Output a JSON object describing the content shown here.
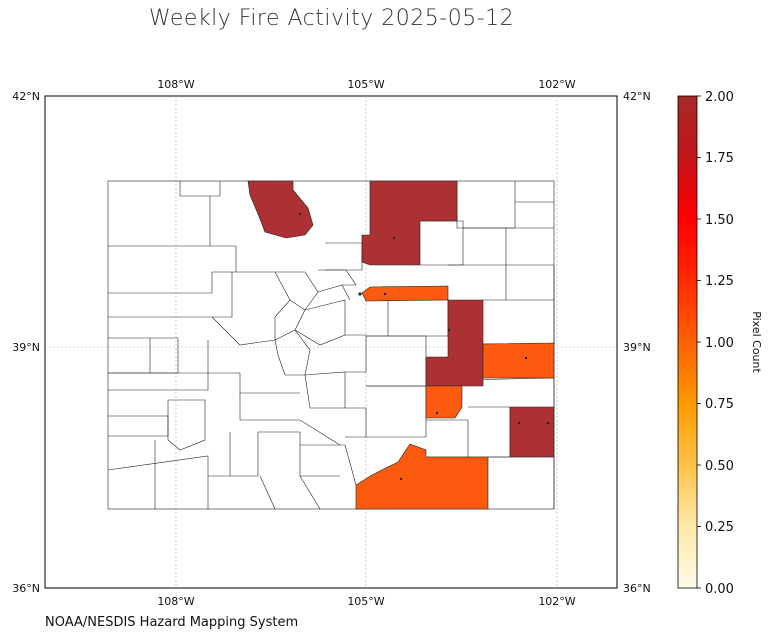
{
  "title": "Weekly Fire Activity 2025-05-12",
  "source": "NOAA/NESDIS Hazard Mapping System",
  "map": {
    "lat_range": [
      36,
      42
    ],
    "lon_range": [
      -110,
      -101
    ],
    "lon_ticks": [
      "108°W",
      "105°W",
      "102°W"
    ],
    "lat_ticks_left": [
      "42°N",
      "39°N",
      "36°N"
    ],
    "lat_ticks_right": [
      "42°N",
      "39°N",
      "36°N"
    ],
    "gridlines": true,
    "region": "Colorado counties"
  },
  "colorbar": {
    "label": "Pixel Count",
    "range": [
      0,
      2
    ],
    "ticks": [
      "0.00",
      "0.25",
      "0.50",
      "0.75",
      "1.00",
      "1.25",
      "1.50",
      "1.75",
      "2.00"
    ],
    "colors": [
      "#fffbea",
      "#ffe8a8",
      "#ffc24a",
      "#ff9a00",
      "#ff6000",
      "#ff2a00",
      "#ff0000",
      "#c4141a",
      "#a52a2a"
    ]
  },
  "fire_counties": [
    {
      "id": "larimer-west",
      "value": 2,
      "color": "#ad3034"
    },
    {
      "id": "weld",
      "value": 2,
      "color": "#ad3034"
    },
    {
      "id": "adams-strip",
      "value": 1,
      "color": "#fc5a0e"
    },
    {
      "id": "lincoln",
      "value": 2,
      "color": "#ad3034"
    },
    {
      "id": "kit-carson",
      "value": 1,
      "color": "#fc5a0e"
    },
    {
      "id": "crowley",
      "value": 1,
      "color": "#fc5a0e"
    },
    {
      "id": "prowers",
      "value": 2,
      "color": "#ad3034"
    },
    {
      "id": "las-animas",
      "value": 1,
      "color": "#fc5a0e"
    }
  ]
}
